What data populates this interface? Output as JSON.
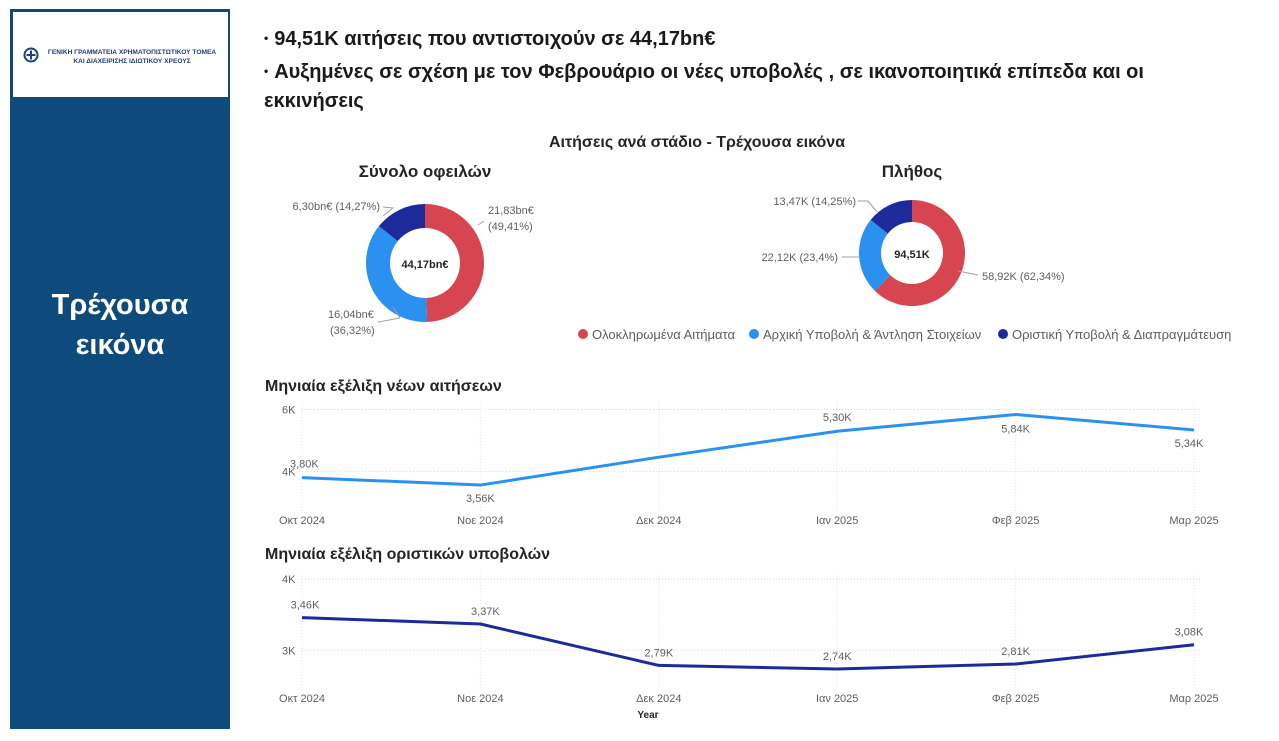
{
  "logo": {
    "line1": "ΓΕΝΙΚΗ ΓΡΑΜΜΑΤΕΙΑ ΧΡΗΜΑΤΟΠΙΣΤΩΤΙΚΟΥ ΤΟΜΕΑ",
    "line2": "ΚΑΙ ΔΙΑΧΕΙΡΙΣΗΣ ΙΔΙΩΤΙΚΟΥ ΧΡΕΟΥΣ"
  },
  "sidebar": {
    "title_line1": "Τρέχουσα",
    "title_line2": "εικόνα"
  },
  "bullets": {
    "b1": "94,51K  αιτήσεις που αντιστοιχούν σε  44,17bn€",
    "b2": "Αυξημένες σε σχέση με τον Φεβρουάριο οι νέες υποβολές , σε ικανοποιητικά επίπεδα και οι εκκινήσεις"
  },
  "donut_section_title": "Αιτήσεις ανά στάδιο - Τρέχουσα εικόνα",
  "colors": {
    "completed": "#d64550",
    "initial": "#2b91f0",
    "final": "#1c2b99",
    "sidebar": "#0f4a7d"
  },
  "chart_data": [
    {
      "type": "pie",
      "title": "Σύνολο οφειλών",
      "center_label": "44,17bn€",
      "categories": [
        "Ολοκληρωμένα Αιτήματα",
        "Αρχική Υποβολή & Άντληση Στοιχείων",
        "Οριστική Υποβολή & Διαπραγμάτευση"
      ],
      "values": [
        21.83,
        16.04,
        6.3
      ],
      "data_labels": [
        [
          "21,83bn€",
          "(49,41%)"
        ],
        [
          "16,04bn€",
          "(36,32%)"
        ],
        [
          "6,30bn€ (14,27%)"
        ]
      ]
    },
    {
      "type": "pie",
      "title": "Πλήθος",
      "center_label": "94,51K",
      "categories": [
        "Ολοκληρωμένα Αιτήματα",
        "Αρχική Υποβολή & Άντληση Στοιχείων",
        "Οριστική Υποβολή & Διαπραγμάτευση"
      ],
      "values": [
        58.92,
        22.12,
        13.47
      ],
      "data_labels": [
        "58,92K (62,34%)",
        "22,12K (23,4%)",
        "13,47K (14,25%)"
      ]
    },
    {
      "type": "line",
      "title": "Μηνιαία εξέλιξη νέων αιτήσεων",
      "categories": [
        "Οκτ 2024",
        "Νοε 2024",
        "Δεκ 2024",
        "Ιαν 2025",
        "Φεβ 2025",
        "Μαρ 2025"
      ],
      "values": [
        3.8,
        3.56,
        4.46,
        5.3,
        5.84,
        5.34
      ],
      "data_labels": [
        "3,80K",
        "3,56K",
        "",
        "5,30K",
        "5,84K",
        "5,34K"
      ],
      "yticks": [
        "6K",
        "4K"
      ],
      "ytick_values": [
        6,
        4
      ],
      "ylim": [
        3.4,
        6.05
      ]
    },
    {
      "type": "line",
      "title": "Μηνιαία εξέλιξη οριστικών υποβολών",
      "categories": [
        "Οκτ 2024",
        "Νοε 2024",
        "Δεκ 2024",
        "Ιαν 2025",
        "Φεβ 2025",
        "Μαρ 2025"
      ],
      "values": [
        3.46,
        3.37,
        2.79,
        2.74,
        2.81,
        3.08
      ],
      "data_labels": [
        "3,46K",
        "3,37K",
        "2,79K",
        "2,74K",
        "2,81K",
        "3,08K"
      ],
      "yticks": [
        "4K",
        "3K"
      ],
      "ytick_values": [
        4,
        3
      ],
      "ylim": [
        2.6,
        4.0
      ],
      "xlabel": "Year"
    }
  ]
}
